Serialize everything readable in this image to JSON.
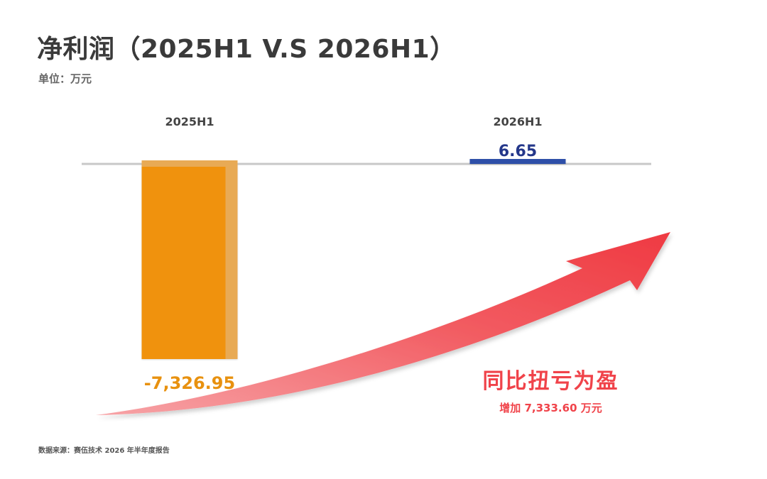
{
  "title": "净利润（2025H1 V.S 2026H1）",
  "unit": "单位：万元",
  "source": "数据来源：赛伍技术 2026 年半年度报告",
  "colors": {
    "bar_2025": "#f0920f",
    "bar_2025_shade": "#e8aa55",
    "bar_2026": "#2f4fa8",
    "value_2025": "#e8910f",
    "value_2026": "#24378a",
    "baseline": "#c8c8c8",
    "arrow": "#f0434a"
  },
  "callout": {
    "title": "同比扭亏为盈",
    "subtitle": "增加 7,333.60 万元"
  },
  "chart_data": {
    "type": "bar",
    "title": "净利润（2025H1 V.S 2026H1）",
    "unit": "万元",
    "categories": [
      "2025H1",
      "2026H1"
    ],
    "values": [
      -7326.95,
      6.65
    ],
    "value_labels": [
      "-7,326.95",
      "6.65"
    ],
    "legend": "none",
    "grid": false
  }
}
